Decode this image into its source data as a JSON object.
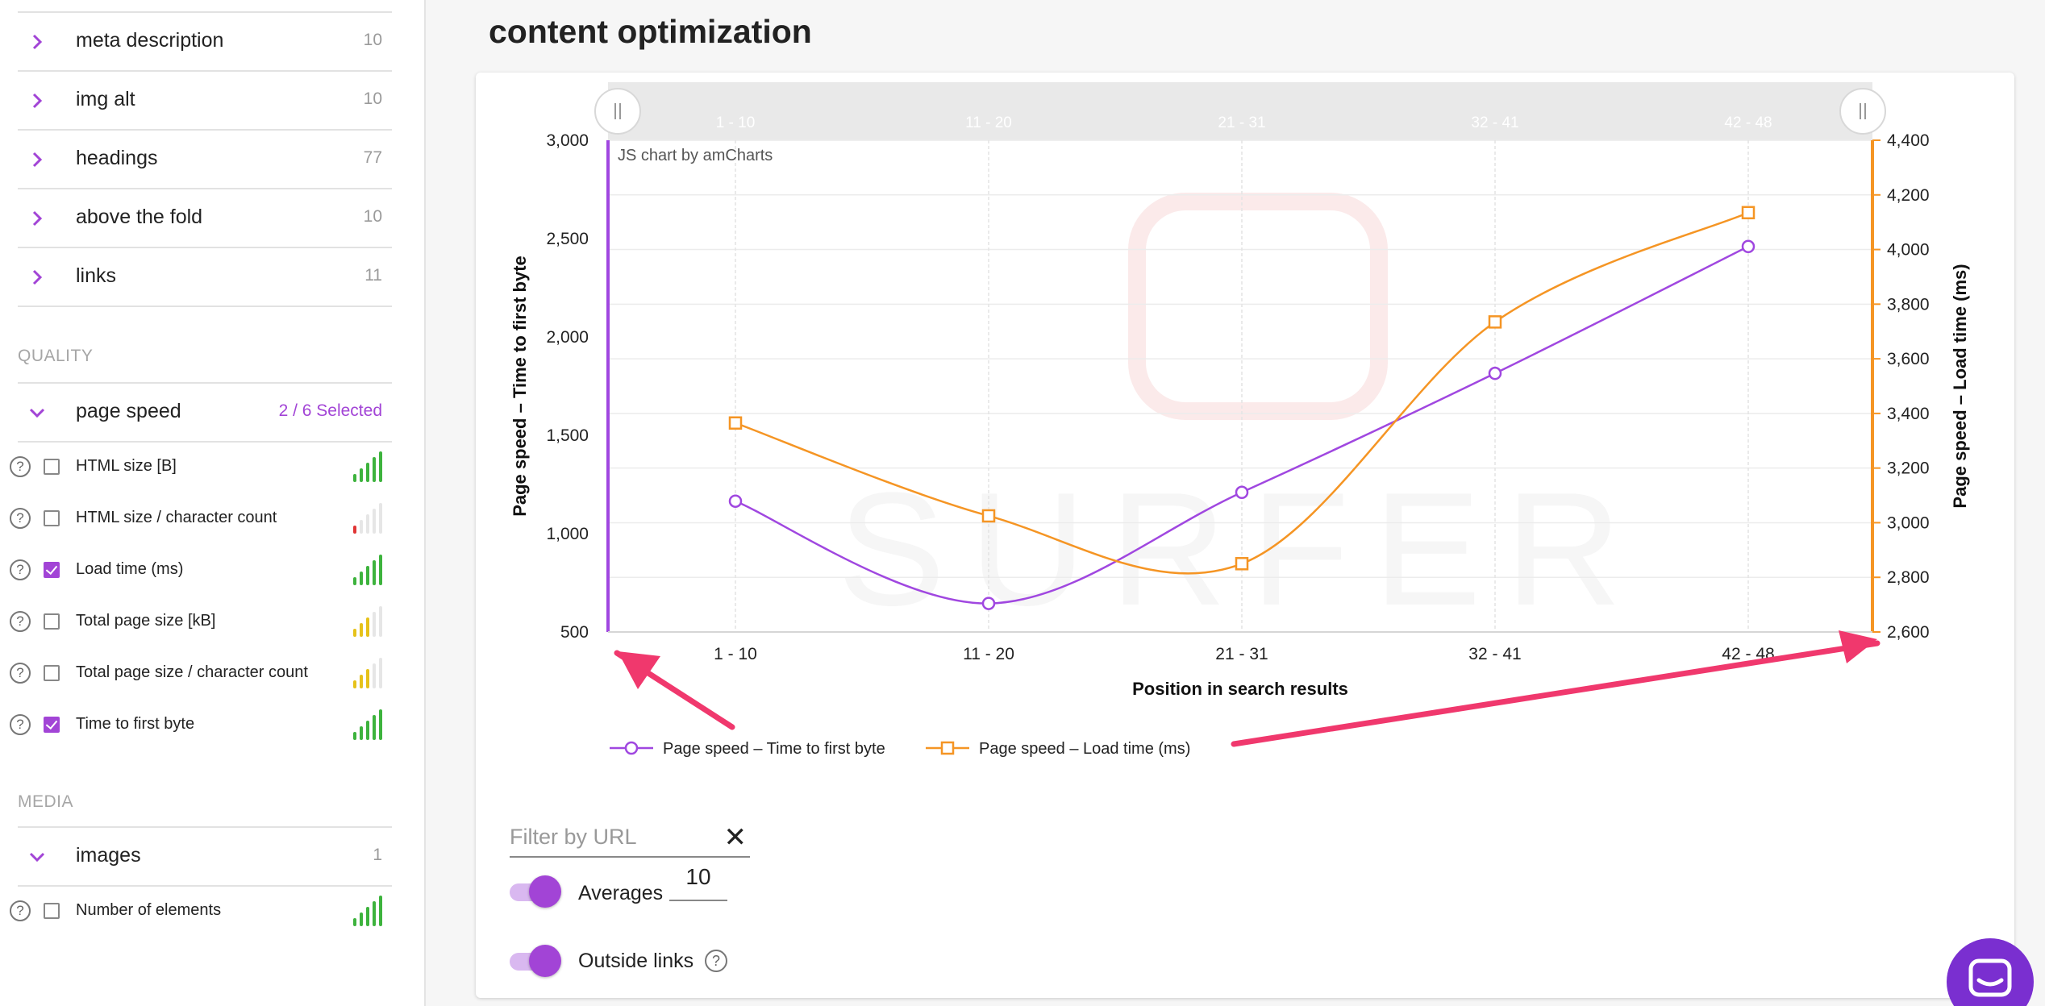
{
  "sidebar": {
    "categories": [
      {
        "label": "meta description",
        "count": "10"
      },
      {
        "label": "img alt",
        "count": "10"
      },
      {
        "label": "headings",
        "count": "77"
      },
      {
        "label": "above the fold",
        "count": "10"
      },
      {
        "label": "links",
        "count": "11"
      }
    ],
    "quality": {
      "title": "QUALITY",
      "group": {
        "label": "page speed",
        "count": "2 / 6 Selected"
      },
      "metrics": [
        {
          "label": "HTML size [B]",
          "checked": false,
          "signal_color": "#3db33d",
          "signal_level": 5
        },
        {
          "label": "HTML size / character count",
          "checked": false,
          "signal_color": "#e03535",
          "signal_level": 1
        },
        {
          "label": "Load time (ms)",
          "checked": true,
          "signal_color": "#3db33d",
          "signal_level": 5
        },
        {
          "label": "Total page size [kB]",
          "checked": false,
          "signal_color": "#e6c21a",
          "signal_level": 3
        },
        {
          "label": "Total page size / character count",
          "checked": false,
          "signal_color": "#e6c21a",
          "signal_level": 3
        },
        {
          "label": "Time to first byte",
          "checked": true,
          "signal_color": "#3db33d",
          "signal_level": 5
        }
      ]
    },
    "media": {
      "title": "MEDIA",
      "group": {
        "label": "images",
        "count": "1"
      },
      "metrics": [
        {
          "label": "Number of elements",
          "checked": false,
          "signal_color": "#3db33d",
          "signal_level": 5
        }
      ]
    }
  },
  "main": {
    "title": "content optimization",
    "filter_placeholder": "Filter by URL",
    "averages_label": "Averages",
    "averages_value": "10",
    "outside_links_label": "Outside links",
    "help_glyph": "?",
    "clear_glyph": "✕"
  },
  "chart_data": {
    "type": "line",
    "credit": "JS chart by amCharts",
    "categories": [
      "1 - 10",
      "11 - 20",
      "21 - 31",
      "32 - 41",
      "42 - 48"
    ],
    "xlabel": "Position in search results",
    "ylabel_left": "Page speed – Time to first byte",
    "ylabel_right": "Page speed – Load time (ms)",
    "ylim_left": [
      500,
      3000
    ],
    "yticks_left": [
      "500",
      "1,000",
      "1,500",
      "2,000",
      "2,500",
      "3,000"
    ],
    "ylim_right": [
      2600,
      4400
    ],
    "yticks_right": [
      "2,600",
      "2,800",
      "3,000",
      "3,200",
      "3,400",
      "3,600",
      "3,800",
      "4,000",
      "4,200",
      "4,400"
    ],
    "series": [
      {
        "name": "Page speed – Time to first byte",
        "axis": "left",
        "color": "#a047e0",
        "marker": "circle",
        "values": [
          1165,
          645,
          1210,
          1815,
          2460
        ]
      },
      {
        "name": "Page speed – Load time (ms)",
        "axis": "right",
        "color": "#f59524",
        "marker": "square",
        "values": [
          3365,
          3025,
          2850,
          3735,
          4135
        ]
      }
    ],
    "legend_position": "bottom",
    "grid": true,
    "watermark": "SURFER"
  },
  "colors": {
    "accent": "#a244d6",
    "annotation_arrow": "#f0386d"
  }
}
